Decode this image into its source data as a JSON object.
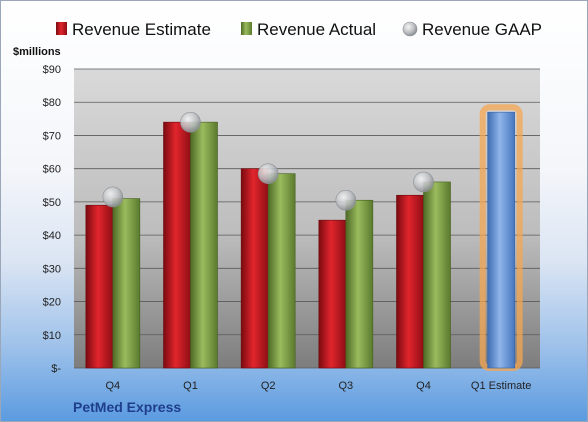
{
  "chart_data": {
    "type": "bar",
    "ylabel": "$millions",
    "footer": "PetMed Express",
    "ylim": [
      0,
      90
    ],
    "yticks": [
      {
        "value": 0,
        "label": "$-"
      },
      {
        "value": 10,
        "label": "$10"
      },
      {
        "value": 20,
        "label": "$20"
      },
      {
        "value": 30,
        "label": "$30"
      },
      {
        "value": 40,
        "label": "$40"
      },
      {
        "value": 50,
        "label": "$50"
      },
      {
        "value": 60,
        "label": "$60"
      },
      {
        "value": 70,
        "label": "$70"
      },
      {
        "value": 80,
        "label": "$80"
      },
      {
        "value": 90,
        "label": "$90"
      }
    ],
    "categories": [
      "Q4",
      "Q1",
      "Q2",
      "Q3",
      "Q4",
      "Q1 Estimate"
    ],
    "grid": true,
    "legend_position": "top",
    "series": [
      {
        "name": "Revenue Estimate",
        "kind": "bar",
        "color": "#c0181f",
        "values": [
          49,
          74,
          60,
          44.5,
          52,
          77
        ],
        "highlight_last": true,
        "highlight_color": "#5b8fd6"
      },
      {
        "name": "Revenue Actual",
        "kind": "bar",
        "color": "#7fa14a",
        "values": [
          51,
          74,
          58.5,
          50.5,
          56,
          null
        ]
      },
      {
        "name": "Revenue GAAP",
        "kind": "marker",
        "color": "#b9bcc0",
        "values": [
          51.5,
          74,
          58.5,
          50.5,
          56,
          null
        ]
      }
    ]
  }
}
